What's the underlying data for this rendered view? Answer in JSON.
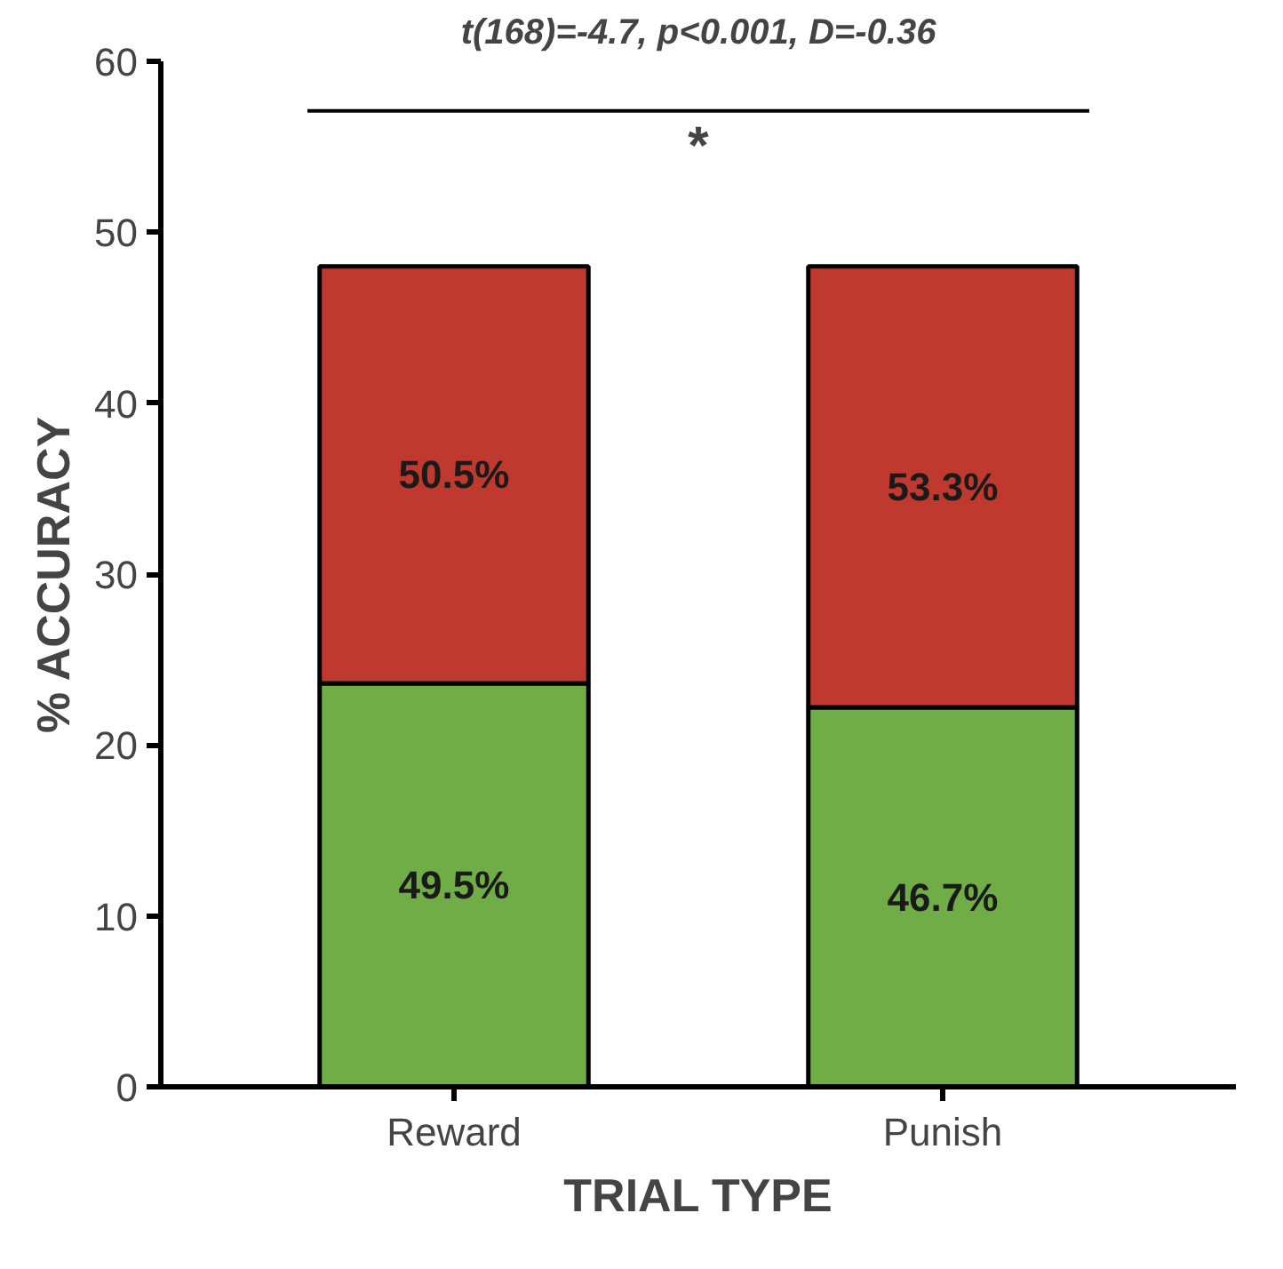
{
  "chart_data": {
    "type": "bar",
    "stacked": true,
    "xlabel": "TRIAL TYPE",
    "ylabel": "% ACCURACY",
    "categories": [
      "Reward",
      "Punish"
    ],
    "series": [
      {
        "color": "#70ad47",
        "values": [
          23.6,
          22.2
        ]
      },
      {
        "color": "#c0392f",
        "values": [
          24.4,
          25.8
        ]
      }
    ],
    "ylim": [
      0,
      60
    ],
    "yticks": [
      0,
      10,
      20,
      30,
      40,
      50,
      60
    ],
    "grid": false,
    "ref_lines": [
      {
        "axis": "y",
        "value": 57.1
      }
    ],
    "annotations": [
      "49.5%",
      "46.7%",
      "50.5%",
      "53.3%",
      "*",
      "t(168)=-4.7, p<0.001, D=-0.36"
    ]
  }
}
